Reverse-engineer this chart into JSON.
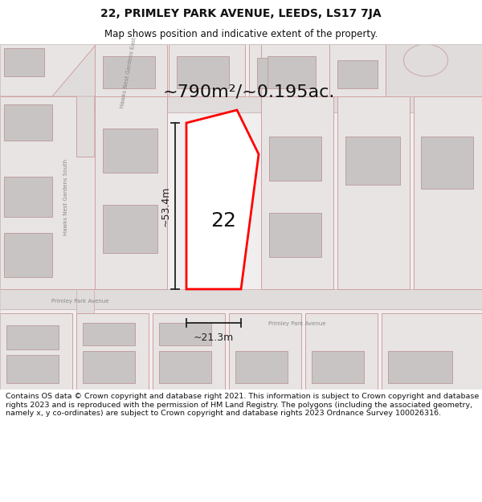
{
  "title": "22, PRIMLEY PARK AVENUE, LEEDS, LS17 7JA",
  "subtitle": "Map shows position and indicative extent of the property.",
  "footer": "Contains OS data © Crown copyright and database right 2021. This information is subject to Crown copyright and database rights 2023 and is reproduced with the permission of HM Land Registry. The polygons (including the associated geometry, namely x, y co-ordinates) are subject to Crown copyright and database rights 2023 Ordnance Survey 100026316.",
  "area_label": "~790m²/~0.195ac.",
  "width_label": "~21.3m",
  "height_label": "~53.4m",
  "plot_number": "22",
  "map_bg": "#f0eeee",
  "parcel_fill": "#e8e4e4",
  "parcel_edge": "#d0a0a0",
  "building_fill": "#c8c4c4",
  "building_edge": "#c0a0a0",
  "road_fill": "#e0dcdc",
  "road_edge": "#c8a8a8",
  "plot_fill": "#ffffff",
  "plot_edge": "#ff0000",
  "dim_color": "#222222",
  "label_color": "#555555",
  "street_color": "#888888"
}
